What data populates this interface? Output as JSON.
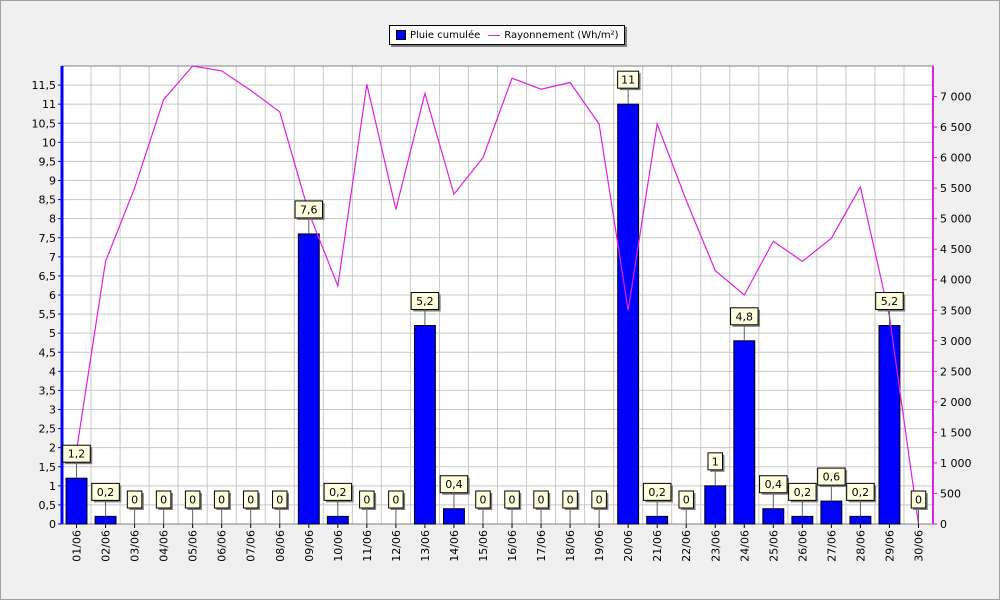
{
  "legend": {
    "bar_label": "Pluie cumulée",
    "line_label": "Rayonnement (Wh/m²)"
  },
  "chart_data": {
    "type": "bar",
    "categories": [
      "01/06",
      "02/06",
      "03/06",
      "04/06",
      "05/06",
      "06/06",
      "07/06",
      "08/06",
      "09/06",
      "10/06",
      "11/06",
      "12/06",
      "13/06",
      "14/06",
      "15/06",
      "16/06",
      "17/06",
      "18/06",
      "19/06",
      "20/06",
      "21/06",
      "22/06",
      "23/06",
      "24/06",
      "25/06",
      "26/06",
      "27/06",
      "28/06",
      "29/06",
      "30/06"
    ],
    "series": [
      {
        "name": "Pluie cumulée",
        "type": "bar",
        "axis": "left",
        "color": "#0000ff",
        "values": [
          1.2,
          0.2,
          0,
          0,
          0,
          0,
          0,
          0,
          7.6,
          0.2,
          0,
          0,
          5.2,
          0.4,
          0,
          0,
          0,
          0,
          0,
          11,
          0.2,
          0,
          1,
          4.8,
          0.4,
          0.2,
          0.6,
          0.2,
          5.2,
          0
        ],
        "data_labels": [
          "1,2",
          "0,2",
          "0",
          "0",
          "0",
          "0",
          "0",
          "0",
          "7,6",
          "0,2",
          "0",
          "0",
          "5,2",
          "0,4",
          "0",
          "0",
          "0",
          "0",
          "0",
          "11",
          "0,2",
          "0",
          "1",
          "4,8",
          "0,4",
          "0,2",
          "0,6",
          "0,2",
          "5,2",
          "0"
        ]
      },
      {
        "name": "Rayonnement (Wh/m²)",
        "type": "line",
        "axis": "right",
        "color": "#e020e0",
        "values": [
          1200,
          4300,
          5500,
          6950,
          7500,
          7420,
          7100,
          6750,
          5100,
          3900,
          7200,
          5150,
          7050,
          5400,
          6000,
          7300,
          7120,
          7230,
          6550,
          3500,
          6550,
          5300,
          4150,
          3750,
          4630,
          4300,
          4680,
          5520,
          3400,
          0
        ]
      }
    ],
    "y_left": {
      "lim": [
        0,
        12
      ],
      "ticks": [
        0,
        0.5,
        1,
        1.5,
        2,
        2.5,
        3,
        3.5,
        4,
        4.5,
        5,
        5.5,
        6,
        6.5,
        7,
        7.5,
        8,
        8.5,
        9,
        9.5,
        10,
        10.5,
        11,
        11.5
      ],
      "tick_labels": [
        "0",
        "0,5",
        "1",
        "1,5",
        "2",
        "2,5",
        "3",
        "3,5",
        "4",
        "4,5",
        "5",
        "5,5",
        "6",
        "6,5",
        "7",
        "7,5",
        "8",
        "8,5",
        "9",
        "9,5",
        "10",
        "10,5",
        "11",
        "11,5"
      ]
    },
    "y_right": {
      "lim": [
        0,
        7500
      ],
      "ticks": [
        0,
        500,
        1000,
        1500,
        2000,
        2500,
        3000,
        3500,
        4000,
        4500,
        5000,
        5500,
        6000,
        6500,
        7000
      ],
      "tick_labels": [
        "0",
        "500",
        "1 000",
        "1 500",
        "2 000",
        "2 500",
        "3 000",
        "3 500",
        "4 000",
        "4 500",
        "5 000",
        "5 500",
        "6 000",
        "6 500",
        "7 000"
      ]
    },
    "grid": true,
    "legend_position": "top-center",
    "colors": {
      "background": "#f0f0f0",
      "plot_background": "#ffffff",
      "grid": "#c8c8c8",
      "left_axis": "#0000ff",
      "right_axis": "#e020e0",
      "label_box": "#ffffe0"
    }
  }
}
